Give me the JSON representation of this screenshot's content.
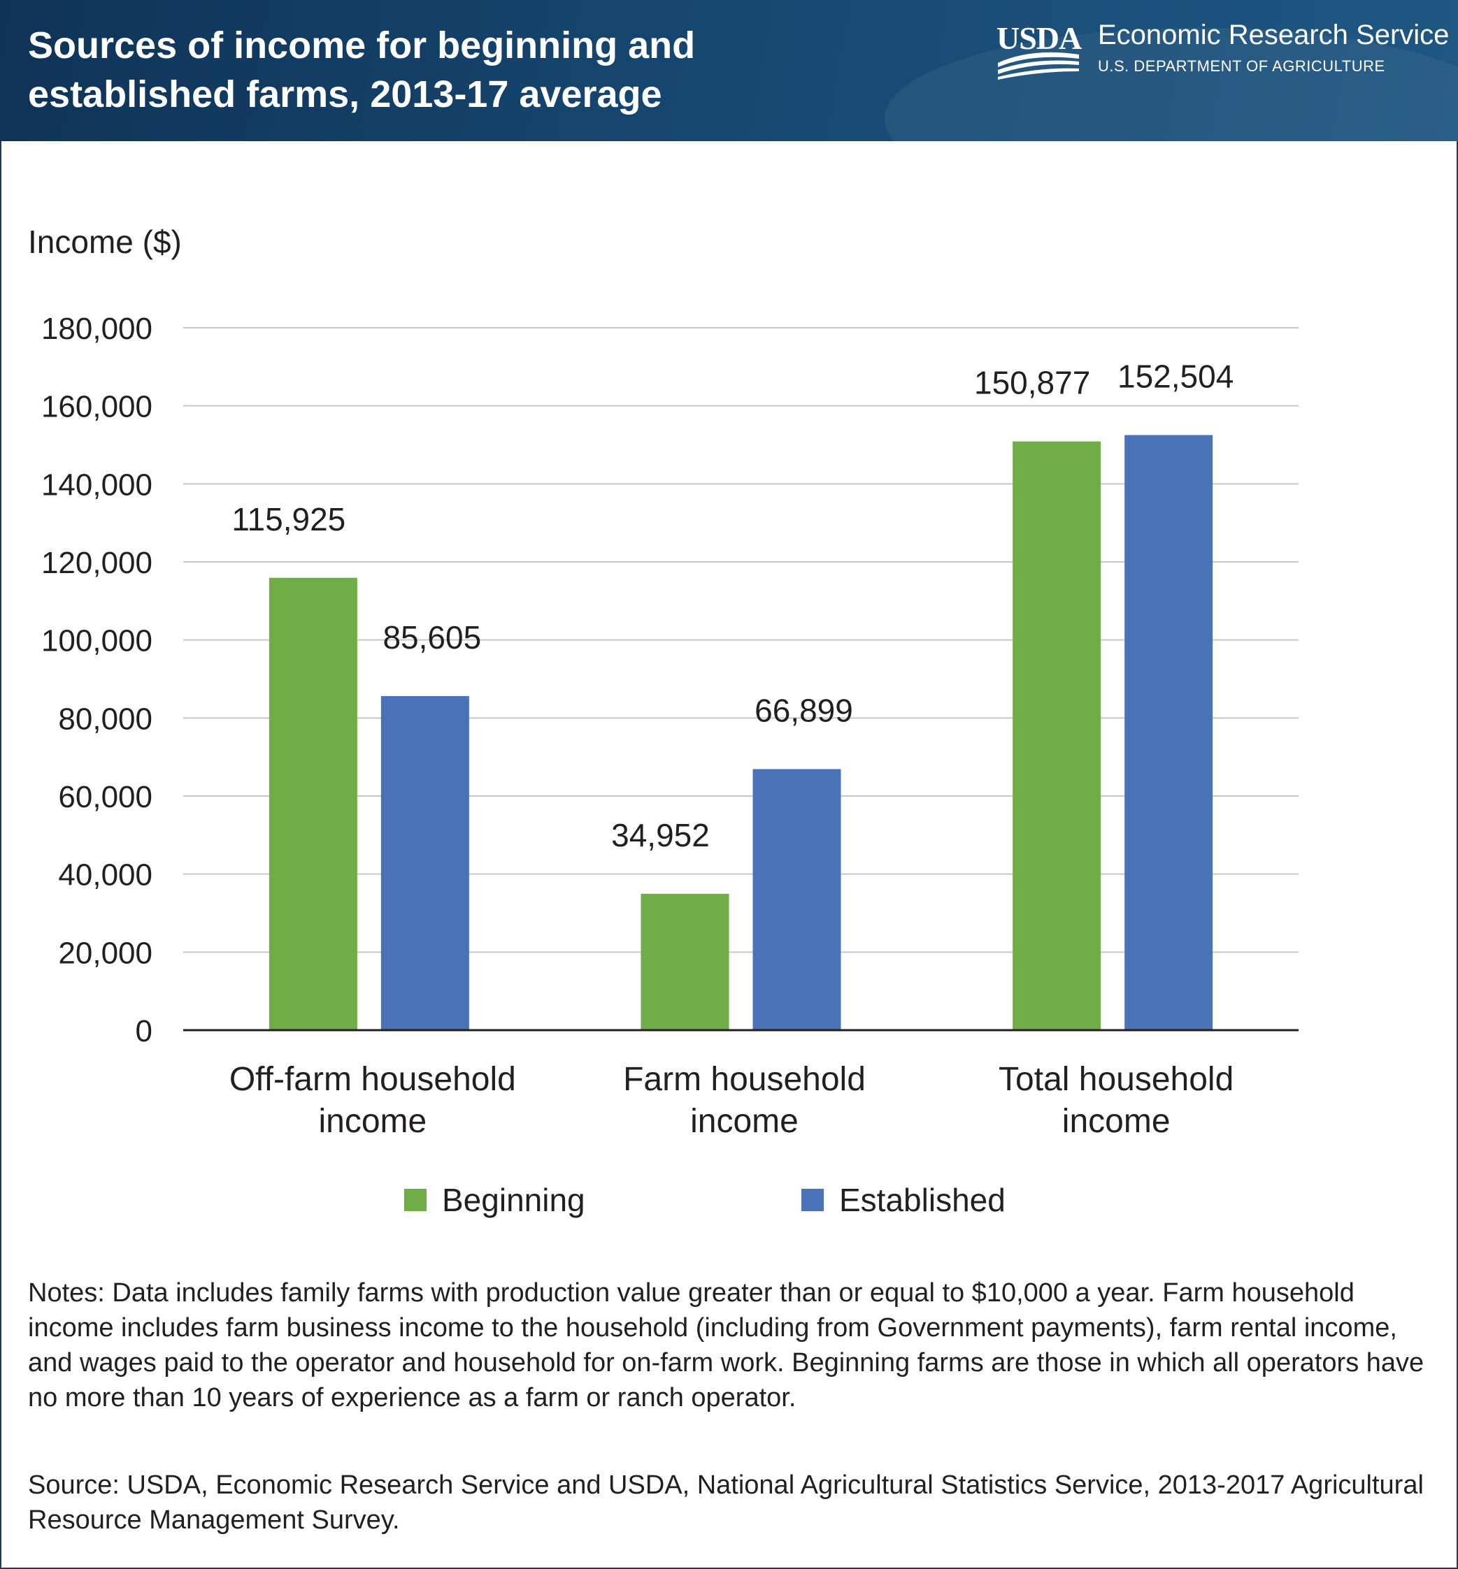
{
  "header": {
    "title_line1": "Sources of income for beginning and",
    "title_line2": "established farms, 2013-17 average",
    "logo_text": "USDA",
    "agency": "Economic Research Service",
    "department": "U.S. DEPARTMENT OF AGRICULTURE"
  },
  "chart_data": {
    "type": "bar",
    "title": "Sources of income for beginning and established farms, 2013-17 average",
    "ylabel": "Income ($)",
    "xlabel": "",
    "categories": [
      [
        "Off-farm household",
        "income"
      ],
      [
        "Farm household",
        "income"
      ],
      [
        "Total household",
        "income"
      ]
    ],
    "series": [
      {
        "name": "Beginning",
        "color": "#70ad47",
        "values": [
          115925,
          34952,
          150877
        ],
        "labels": [
          "115,925",
          "34,952",
          "150,877"
        ]
      },
      {
        "name": "Established",
        "color": "#4a72b8",
        "values": [
          85605,
          66899,
          152504
        ],
        "labels": [
          "85,605",
          "66,899",
          "152,504"
        ]
      }
    ],
    "ylim": [
      0,
      180000
    ],
    "yticks": [
      0,
      20000,
      40000,
      60000,
      80000,
      100000,
      120000,
      140000,
      160000,
      180000
    ],
    "ytick_labels": [
      "0",
      "20,000",
      "40,000",
      "60,000",
      "80,000",
      "100,000",
      "120,000",
      "140,000",
      "160,000",
      "180,000"
    ],
    "grid": true,
    "legend_position": "bottom"
  },
  "notes": "Notes: Data includes family farms with production value greater than or equal to $10,000 a year. Farm household income includes farm business income to the household (including from Government payments), farm rental income, and wages paid to the operator and household for on-farm work. Beginning farms are those in which all operators have no more than 10 years of experience as a farm or ranch operator.",
  "source": "Source: USDA, Economic Research Service and USDA, National Agricultural Statistics Service, 2013-2017 Agricultural Resource Management Survey."
}
